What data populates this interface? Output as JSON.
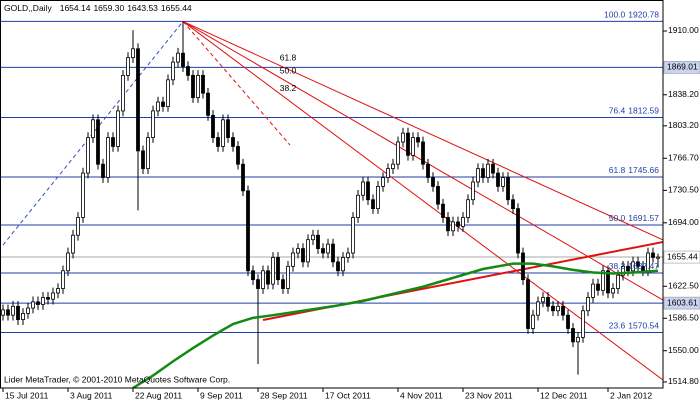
{
  "chart_data": {
    "type": "candlestick",
    "header": {
      "symbol": "GOLD,,Daily",
      "ohlc": [
        "1654.14",
        "1659.30",
        "1643.53",
        "1655.44"
      ]
    },
    "footer": "Lider MetaTrader, © 2001-2010 MetaQuotes Software Corp.",
    "xlim": [
      -0.6,
      132
    ],
    "ylim": [
      1508.0,
      1944.9
    ],
    "xticks": [
      {
        "value": 0,
        "label": "15 Jul 2011"
      },
      {
        "value": 13,
        "label": "3 Aug 2011"
      },
      {
        "value": 26,
        "label": "22 Aug 2011"
      },
      {
        "value": 39,
        "label": "9 Sep 2011"
      },
      {
        "value": 51,
        "label": "28 Sep 2011"
      },
      {
        "value": 64,
        "label": "17 Oct 2011"
      },
      {
        "value": 79,
        "label": "4 Nov 2011"
      },
      {
        "value": 92,
        "label": "23 Nov 2011"
      },
      {
        "value": 107,
        "label": "12 Dec 2011"
      },
      {
        "value": 121,
        "label": "2 Jan 2012"
      }
    ],
    "yticks": [
      {
        "value": 1910,
        "label": "1910.00"
      },
      {
        "value": 1838.2,
        "label": "1838.20"
      },
      {
        "value": 1803.2,
        "label": "1803.20"
      },
      {
        "value": 1766.7,
        "label": "1766.70"
      },
      {
        "value": 1730.5,
        "label": "1730.50"
      },
      {
        "value": 1694,
        "label": "1694.00"
      },
      {
        "value": 1622.5,
        "label": "1622.50"
      },
      {
        "value": 1586.5,
        "label": "1586.50"
      },
      {
        "value": 1550,
        "label": "1550.00"
      },
      {
        "value": 1514.8,
        "label": "1514.80"
      }
    ],
    "up_color": "#ffffff",
    "down_color": "#000000",
    "open": [
      1590,
      1596,
      1590,
      1600,
      1585,
      1592,
      1598,
      1605,
      1602,
      1610,
      1608,
      1615,
      1620,
      1640,
      1660,
      1680,
      1700,
      1750,
      1790,
      1810,
      1760,
      1745,
      1790,
      1780,
      1820,
      1860,
      1880,
      1890,
      1775,
      1755,
      1790,
      1820,
      1830,
      1825,
      1855,
      1875,
      1885,
      1870,
      1860,
      1835,
      1860,
      1840,
      1815,
      1790,
      1780,
      1810,
      1790,
      1780,
      1760,
      1730,
      1640,
      1630,
      1620,
      1640,
      1625,
      1655,
      1630,
      1620,
      1645,
      1660,
      1665,
      1650,
      1675,
      1680,
      1665,
      1660,
      1670,
      1650,
      1640,
      1655,
      1660,
      1700,
      1725,
      1740,
      1720,
      1710,
      1735,
      1745,
      1755,
      1760,
      1785,
      1795,
      1770,
      1790,
      1785,
      1760,
      1745,
      1735,
      1715,
      1700,
      1685,
      1695,
      1690,
      1700,
      1720,
      1740,
      1755,
      1745,
      1760,
      1750,
      1735,
      1745,
      1720,
      1710,
      1660,
      1630,
      1575,
      1590,
      1605,
      1610,
      1600,
      1595,
      1600,
      1590,
      1575,
      1560,
      1565,
      1595,
      1610,
      1625,
      1618,
      1640,
      1615,
      1620,
      1635,
      1645,
      1640,
      1650,
      1645,
      1640,
      1660,
      1654.14
    ],
    "high": [
      1602,
      1602,
      1606,
      1606,
      1598,
      1604,
      1611,
      1611,
      1616,
      1616,
      1621,
      1626,
      1646,
      1666,
      1686,
      1706,
      1756,
      1796,
      1816,
      1816,
      1766,
      1796,
      1796,
      1826,
      1866,
      1886,
      1911,
      1896,
      1781,
      1796,
      1826,
      1836,
      1836,
      1861,
      1881,
      1891,
      1920.78,
      1876,
      1866,
      1866,
      1866,
      1846,
      1821,
      1796,
      1816,
      1816,
      1796,
      1786,
      1766,
      1736,
      1646,
      1636,
      1646,
      1646,
      1661,
      1661,
      1636,
      1651,
      1666,
      1671,
      1671,
      1681,
      1686,
      1686,
      1671,
      1676,
      1676,
      1656,
      1661,
      1666,
      1706,
      1731,
      1746,
      1746,
      1726,
      1741,
      1751,
      1761,
      1766,
      1791,
      1801,
      1801,
      1796,
      1796,
      1791,
      1766,
      1751,
      1741,
      1721,
      1706,
      1701,
      1701,
      1706,
      1726,
      1746,
      1761,
      1761,
      1766,
      1766,
      1756,
      1751,
      1751,
      1726,
      1716,
      1666,
      1636,
      1596,
      1611,
      1616,
      1616,
      1606,
      1606,
      1606,
      1596,
      1581,
      1571,
      1601,
      1616,
      1631,
      1631,
      1646,
      1646,
      1626,
      1641,
      1651,
      1651,
      1656,
      1656,
      1651,
      1666,
      1666,
      1659.3
    ],
    "low": [
      1584,
      1584,
      1584,
      1579,
      1579,
      1586,
      1592,
      1596,
      1596,
      1602,
      1602,
      1609,
      1614,
      1634,
      1654,
      1674,
      1694,
      1744,
      1784,
      1754,
      1739,
      1739,
      1774,
      1774,
      1814,
      1854,
      1874,
      1708,
      1749,
      1749,
      1784,
      1814,
      1819,
      1819,
      1849,
      1869,
      1864,
      1854,
      1829,
      1829,
      1834,
      1809,
      1784,
      1774,
      1774,
      1784,
      1774,
      1754,
      1724,
      1634,
      1624,
      1535,
      1614,
      1619,
      1619,
      1624,
      1614,
      1614,
      1639,
      1654,
      1644,
      1644,
      1669,
      1659,
      1654,
      1654,
      1644,
      1634,
      1634,
      1649,
      1654,
      1694,
      1719,
      1714,
      1704,
      1704,
      1729,
      1739,
      1749,
      1754,
      1779,
      1764,
      1764,
      1779,
      1754,
      1739,
      1729,
      1709,
      1694,
      1679,
      1679,
      1684,
      1684,
      1694,
      1714,
      1734,
      1739,
      1739,
      1744,
      1729,
      1729,
      1714,
      1704,
      1654,
      1624,
      1569,
      1569,
      1584,
      1599,
      1594,
      1589,
      1589,
      1584,
      1569,
      1554,
      1523,
      1559,
      1589,
      1604,
      1612,
      1612,
      1609,
      1609,
      1614,
      1629,
      1634,
      1634,
      1639,
      1634,
      1634,
      1649,
      1643.53
    ],
    "close": [
      1596,
      1590,
      1600,
      1585,
      1592,
      1598,
      1605,
      1602,
      1610,
      1608,
      1615,
      1620,
      1640,
      1660,
      1680,
      1700,
      1750,
      1790,
      1810,
      1760,
      1745,
      1790,
      1780,
      1820,
      1860,
      1880,
      1890,
      1775,
      1755,
      1790,
      1820,
      1830,
      1825,
      1855,
      1875,
      1885,
      1870,
      1860,
      1835,
      1860,
      1840,
      1815,
      1790,
      1780,
      1810,
      1790,
      1780,
      1760,
      1730,
      1640,
      1630,
      1620,
      1640,
      1625,
      1655,
      1630,
      1620,
      1645,
      1660,
      1665,
      1650,
      1675,
      1680,
      1665,
      1660,
      1670,
      1650,
      1640,
      1655,
      1660,
      1700,
      1725,
      1740,
      1720,
      1710,
      1735,
      1745,
      1755,
      1760,
      1785,
      1795,
      1770,
      1790,
      1785,
      1760,
      1745,
      1735,
      1715,
      1700,
      1685,
      1695,
      1690,
      1700,
      1720,
      1740,
      1755,
      1745,
      1760,
      1750,
      1735,
      1745,
      1720,
      1710,
      1660,
      1630,
      1575,
      1590,
      1605,
      1610,
      1600,
      1595,
      1600,
      1590,
      1575,
      1560,
      1565,
      1595,
      1610,
      1625,
      1618,
      1640,
      1615,
      1620,
      1635,
      1645,
      1640,
      1650,
      1645,
      1640,
      1660,
      1655,
      1655.44
    ],
    "ma": {
      "color": "#138a13",
      "x": [
        26,
        30,
        34,
        38,
        42,
        46,
        50,
        54,
        60,
        66,
        72,
        78,
        84,
        90,
        96,
        102,
        106,
        110,
        114,
        118,
        122,
        126,
        131
      ],
      "values": [
        1508,
        1522,
        1538,
        1553,
        1567,
        1580,
        1587,
        1590,
        1595,
        1600,
        1606,
        1614,
        1622,
        1632,
        1642,
        1648,
        1648,
        1645,
        1641,
        1638,
        1637,
        1638,
        1640
      ]
    },
    "fib_color": "#1f3fa8",
    "fib_levels": [
      {
        "ratio": "100.0",
        "value": 1920.78
      },
      {
        "ratio": "76.4",
        "value": 1812.59
      },
      {
        "ratio": "61.8",
        "value": 1745.66
      },
      {
        "ratio": "50.0",
        "value": 1691.57
      },
      {
        "ratio": "38.2",
        "value": 1637.47
      },
      {
        "ratio": "23.6",
        "value": 1570.54
      }
    ],
    "hlines": [
      1869.01,
      1603.61
    ],
    "lines": [
      {
        "x": [
          36,
          132
        ],
        "y": [
          1920.78,
          1674.7
        ],
        "color": "#e01010",
        "label": "61.8"
      },
      {
        "x": [
          36,
          132
        ],
        "y": [
          1920.78,
          1607
        ],
        "color": "#e01010",
        "label": "50.0"
      },
      {
        "x": [
          36,
          132
        ],
        "y": [
          1920.78,
          1517
        ],
        "color": "#e01010",
        "label": "38.2"
      },
      {
        "x": [
          36,
          57.4
        ],
        "y": [
          1920.78,
          1781.6
        ],
        "color": "#e01010",
        "dash": true
      },
      {
        "x": [
          0,
          36
        ],
        "y": [
          1669,
          1920.78
        ],
        "color": "#3050c0",
        "dash": true
      },
      {
        "x": [
          52,
          132
        ],
        "y": [
          1584.6,
          1672.4
        ],
        "color": "#e01010",
        "width": 2
      }
    ]
  }
}
